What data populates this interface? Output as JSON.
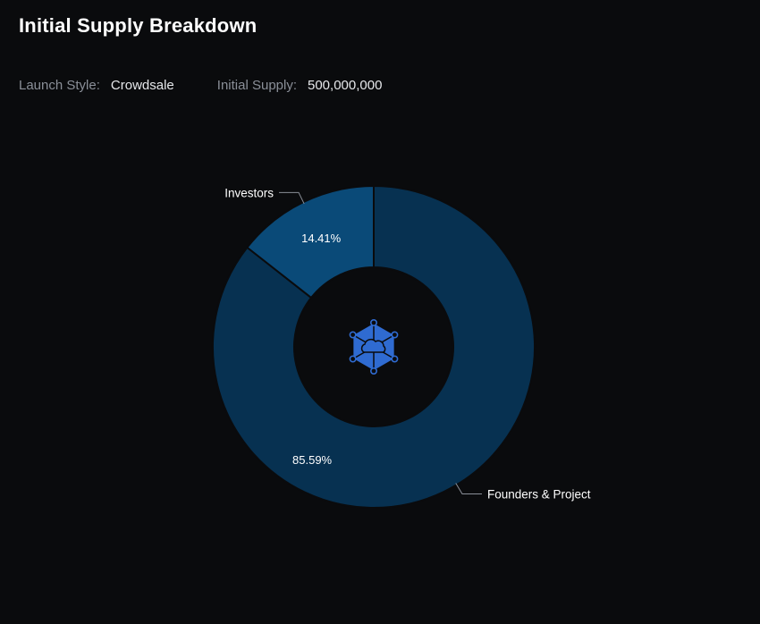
{
  "header": {
    "title": "Initial Supply Breakdown"
  },
  "meta": {
    "launch_style_label": "Launch Style:",
    "launch_style_value": "Crowdsale",
    "initial_supply_label": "Initial Supply:",
    "initial_supply_value": "500,000,000"
  },
  "center_logo": {
    "icon": "storj-hexagon-network-icon",
    "color": "#2f6bd1"
  },
  "colors": {
    "background": "#0a0b0d",
    "investors": "#0a4a78",
    "founders": "#073151",
    "slice_border": "#0a0b0d",
    "callout_line": "#8a8f98"
  },
  "chart_data": {
    "type": "pie",
    "donut": true,
    "title": "Initial Supply Breakdown",
    "slices": [
      {
        "name": "Investors",
        "value": 14.41,
        "label": "14.41%"
      },
      {
        "name": "Founders & Project",
        "value": 85.59,
        "label": "85.59%"
      }
    ],
    "start": "top",
    "direction": "counterclockwise-from-top for Investors"
  }
}
